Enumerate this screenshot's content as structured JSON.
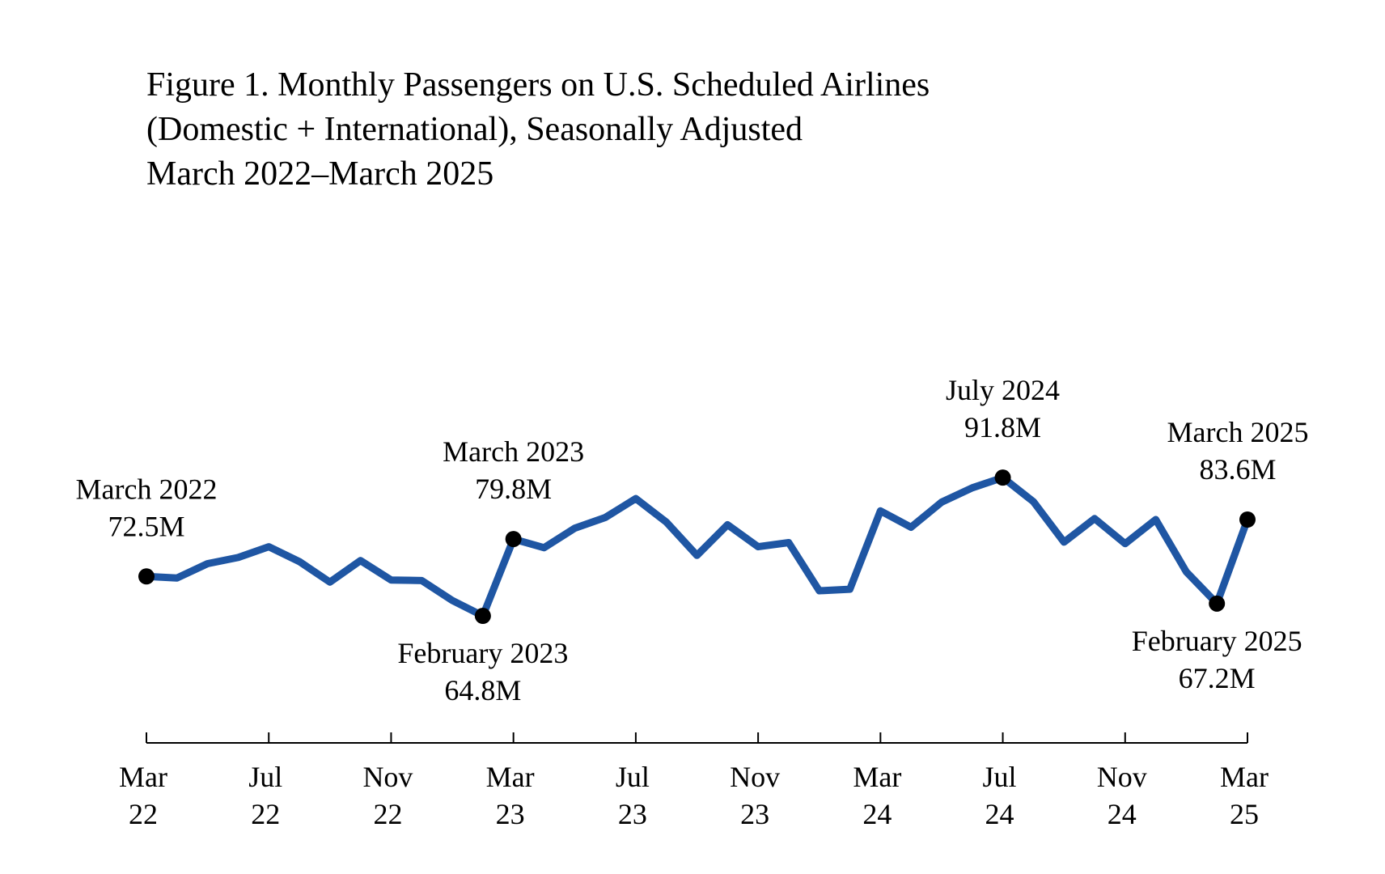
{
  "chart_data": {
    "type": "line",
    "title_lines": [
      "Figure 1. Monthly Passengers on U.S. Scheduled Airlines",
      "(Domestic + International), Seasonally Adjusted",
      "March 2022–March 2025"
    ],
    "xlabel": "",
    "ylabel": "",
    "y_axis_shown": false,
    "grid": false,
    "units": "millions of passengers",
    "series": [
      {
        "name": "Monthly Passengers",
        "color": "#1f56a3",
        "x": [
          "Mar 2022",
          "Apr 2022",
          "May 2022",
          "Jun 2022",
          "Jul 2022",
          "Aug 2022",
          "Sep 2022",
          "Oct 2022",
          "Nov 2022",
          "Dec 2022",
          "Jan 2023",
          "Feb 2023",
          "Mar 2023",
          "Apr 2023",
          "May 2023",
          "Jun 2023",
          "Jul 2023",
          "Aug 2023",
          "Sep 2023",
          "Oct 2023",
          "Nov 2023",
          "Dec 2023",
          "Jan 2024",
          "Feb 2024",
          "Mar 2024",
          "Apr 2024",
          "May 2024",
          "Jun 2024",
          "Jul 2024",
          "Aug 2024",
          "Sep 2024",
          "Oct 2024",
          "Nov 2024",
          "Dec 2024",
          "Jan 2025",
          "Feb 2025",
          "Mar 2025"
        ],
        "values": [
          72.5,
          72.2,
          75.0,
          76.2,
          78.3,
          75.4,
          71.4,
          75.6,
          71.8,
          71.7,
          67.8,
          64.8,
          79.8,
          78.1,
          81.9,
          84.0,
          87.7,
          83.1,
          76.6,
          82.6,
          78.3,
          79.1,
          69.7,
          70.0,
          85.3,
          82.1,
          87.0,
          89.8,
          91.8,
          87.1,
          79.2,
          83.8,
          78.9,
          83.6,
          73.4,
          67.2,
          83.6
        ]
      }
    ],
    "ylim": [
      40,
      125
    ],
    "x_ticks": [
      {
        "index": 0,
        "month": "Mar",
        "year": "22"
      },
      {
        "index": 4,
        "month": "Jul",
        "year": "22"
      },
      {
        "index": 8,
        "month": "Nov",
        "year": "22"
      },
      {
        "index": 12,
        "month": "Mar",
        "year": "23"
      },
      {
        "index": 16,
        "month": "Jul",
        "year": "23"
      },
      {
        "index": 20,
        "month": "Nov",
        "year": "23"
      },
      {
        "index": 24,
        "month": "Mar",
        "year": "24"
      },
      {
        "index": 28,
        "month": "Jul",
        "year": "24"
      },
      {
        "index": 32,
        "month": "Nov",
        "year": "24"
      },
      {
        "index": 36,
        "month": "Mar",
        "year": "25"
      }
    ],
    "annotations": [
      {
        "index": 0,
        "label": "March 2022",
        "value_label": "72.5M",
        "position": "above"
      },
      {
        "index": 11,
        "label": "February 2023",
        "value_label": "64.8M",
        "position": "below"
      },
      {
        "index": 12,
        "label": "March 2023",
        "value_label": "79.8M",
        "position": "above"
      },
      {
        "index": 28,
        "label": "July 2024",
        "value_label": "91.8M",
        "position": "above"
      },
      {
        "index": 35,
        "label": "February 2025",
        "value_label": "67.2M",
        "position": "below"
      },
      {
        "index": 36,
        "label": "March 2025",
        "value_label": "83.6M",
        "position": "above"
      }
    ]
  }
}
